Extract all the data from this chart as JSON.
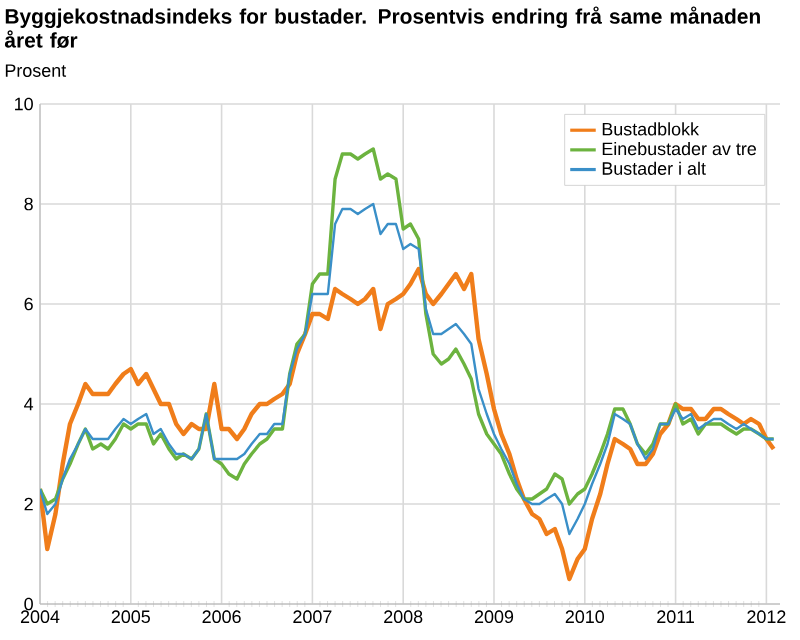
{
  "chart_data": {
    "type": "line",
    "title": "Byggjekostnadsindeks for bustader. Prosentvis endring frå same månaden året før",
    "ylabel": "Prosent",
    "x": [
      2004,
      2004.08,
      2004.17,
      2004.25,
      2004.33,
      2004.42,
      2004.5,
      2004.58,
      2004.67,
      2004.75,
      2004.83,
      2004.92,
      2005,
      2005.08,
      2005.17,
      2005.25,
      2005.33,
      2005.42,
      2005.5,
      2005.58,
      2005.67,
      2005.75,
      2005.83,
      2005.92,
      2006,
      2006.08,
      2006.17,
      2006.25,
      2006.33,
      2006.42,
      2006.5,
      2006.58,
      2006.67,
      2006.75,
      2006.83,
      2006.92,
      2007,
      2007.08,
      2007.17,
      2007.25,
      2007.33,
      2007.42,
      2007.5,
      2007.58,
      2007.67,
      2007.75,
      2007.83,
      2007.92,
      2008,
      2008.08,
      2008.17,
      2008.25,
      2008.33,
      2008.42,
      2008.5,
      2008.58,
      2008.67,
      2008.75,
      2008.83,
      2008.92,
      2009,
      2009.08,
      2009.17,
      2009.25,
      2009.33,
      2009.42,
      2009.5,
      2009.58,
      2009.67,
      2009.75,
      2009.83,
      2009.92,
      2010,
      2010.08,
      2010.17,
      2010.25,
      2010.33,
      2010.42,
      2010.5,
      2010.58,
      2010.67,
      2010.75,
      2010.83,
      2010.92,
      2011,
      2011.08,
      2011.17,
      2011.25,
      2011.33,
      2011.42,
      2011.5,
      2011.58,
      2011.67,
      2011.75,
      2011.83,
      2011.92,
      2012,
      2012.08
    ],
    "series": [
      {
        "name": "Bustadblokk",
        "color": "#f07d1a",
        "values": [
          2.3,
          1.1,
          1.8,
          2.8,
          3.6,
          4.0,
          4.4,
          4.2,
          4.2,
          4.2,
          4.4,
          4.6,
          4.7,
          4.4,
          4.6,
          4.3,
          4.0,
          4.0,
          3.6,
          3.4,
          3.6,
          3.5,
          3.5,
          4.4,
          3.5,
          3.5,
          3.3,
          3.5,
          3.8,
          4.0,
          4.0,
          4.1,
          4.2,
          4.4,
          5.0,
          5.4,
          5.8,
          5.8,
          5.7,
          6.3,
          6.2,
          6.1,
          6.0,
          6.1,
          6.3,
          5.5,
          6.0,
          6.1,
          6.2,
          6.4,
          6.7,
          6.2,
          6.0,
          6.2,
          6.4,
          6.6,
          6.3,
          6.6,
          5.3,
          4.6,
          3.9,
          3.4,
          3.0,
          2.5,
          2.1,
          1.8,
          1.7,
          1.4,
          1.5,
          1.1,
          0.5,
          0.9,
          1.1,
          1.7,
          2.2,
          2.8,
          3.3,
          3.2,
          3.1,
          2.8,
          2.8,
          3.0,
          3.4,
          3.6,
          4.0,
          3.9,
          3.9,
          3.7,
          3.7,
          3.9,
          3.9,
          3.8,
          3.7,
          3.6,
          3.7,
          3.6,
          3.3,
          3.1
        ]
      },
      {
        "name": "Einebustader av tre",
        "color": "#6cb33f",
        "values": [
          2.3,
          2.0,
          2.1,
          2.5,
          2.8,
          3.2,
          3.5,
          3.1,
          3.2,
          3.1,
          3.3,
          3.6,
          3.5,
          3.6,
          3.6,
          3.2,
          3.4,
          3.1,
          2.9,
          3.0,
          2.9,
          3.1,
          3.8,
          2.9,
          2.8,
          2.6,
          2.5,
          2.8,
          3.0,
          3.2,
          3.3,
          3.5,
          3.5,
          4.6,
          5.2,
          5.4,
          6.4,
          6.6,
          6.6,
          8.5,
          9.0,
          9.0,
          8.9,
          9.0,
          9.1,
          8.5,
          8.6,
          8.5,
          7.5,
          7.6,
          7.3,
          5.8,
          5.0,
          4.8,
          4.9,
          5.1,
          4.8,
          4.5,
          3.8,
          3.4,
          3.2,
          3.0,
          2.6,
          2.3,
          2.1,
          2.1,
          2.2,
          2.3,
          2.6,
          2.5,
          2.0,
          2.2,
          2.3,
          2.6,
          3.0,
          3.4,
          3.9,
          3.9,
          3.6,
          3.2,
          3.0,
          3.2,
          3.6,
          3.6,
          4.0,
          3.6,
          3.7,
          3.4,
          3.6,
          3.6,
          3.6,
          3.5,
          3.4,
          3.5,
          3.5,
          3.4,
          3.3,
          3.3
        ]
      },
      {
        "name": "Bustader i alt",
        "color": "#3a8fc8",
        "values": [
          2.3,
          1.8,
          2.0,
          2.5,
          2.9,
          3.2,
          3.5,
          3.3,
          3.3,
          3.3,
          3.5,
          3.7,
          3.6,
          3.7,
          3.8,
          3.4,
          3.5,
          3.2,
          3.0,
          3.0,
          2.9,
          3.1,
          3.8,
          2.9,
          2.9,
          2.9,
          2.9,
          3.0,
          3.2,
          3.4,
          3.4,
          3.6,
          3.6,
          4.6,
          5.1,
          5.4,
          6.2,
          6.2,
          6.2,
          7.6,
          7.9,
          7.9,
          7.8,
          7.9,
          8.0,
          7.4,
          7.6,
          7.6,
          7.1,
          7.2,
          7.1,
          5.9,
          5.4,
          5.4,
          5.5,
          5.6,
          5.4,
          5.2,
          4.3,
          3.8,
          3.4,
          3.1,
          2.8,
          2.4,
          2.1,
          2.0,
          2.0,
          2.1,
          2.2,
          2.0,
          1.4,
          1.7,
          2.0,
          2.4,
          2.8,
          3.2,
          3.8,
          3.7,
          3.6,
          3.2,
          2.9,
          3.1,
          3.6,
          3.6,
          3.9,
          3.7,
          3.8,
          3.5,
          3.6,
          3.7,
          3.7,
          3.6,
          3.5,
          3.6,
          3.5,
          3.4,
          3.3,
          3.3
        ]
      }
    ],
    "xlim": [
      2004,
      2012.15
    ],
    "ylim": [
      0,
      10
    ],
    "xticks": [
      2004,
      2005,
      2006,
      2007,
      2008,
      2009,
      2010,
      2011,
      2012
    ],
    "yticks": [
      0,
      2,
      4,
      6,
      8,
      10
    ],
    "grid": true,
    "legend": "top right"
  }
}
